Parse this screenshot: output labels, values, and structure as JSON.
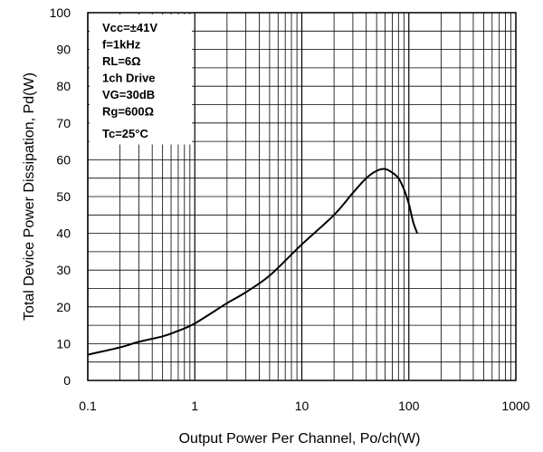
{
  "chart_data": {
    "type": "line",
    "xscale": "log",
    "xlim": [
      0.1,
      1000
    ],
    "ylim": [
      0,
      100
    ],
    "xlabel": "Output Power Per Channel, Po/ch(W)",
    "ylabel": "Total Device Power Dissipation, Pd(W)",
    "grid": true,
    "x_tick_labels": [
      "0.1",
      "1",
      "10",
      "100",
      "1000"
    ],
    "y_tick_labels": [
      "0",
      "10",
      "20",
      "30",
      "40",
      "50",
      "60",
      "70",
      "80",
      "90",
      "100"
    ],
    "conditions": [
      "Vcc=±41V",
      "f=1kHz",
      "RL=6Ω",
      "1ch Drive",
      "VG=30dB",
      "Rg=600Ω",
      "Tc=25°C"
    ],
    "series": [
      {
        "x": [
          0.1,
          0.2,
          0.3,
          0.5,
          0.7,
          1,
          2,
          3,
          5,
          10,
          20,
          30,
          40,
          50,
          60,
          70,
          80,
          90,
          100,
          110,
          120
        ],
        "y": [
          7,
          9,
          10.5,
          12,
          13.5,
          15.5,
          21,
          24,
          28.5,
          37,
          45,
          51,
          55,
          57,
          57.5,
          56.5,
          55,
          52,
          48,
          43,
          40
        ]
      }
    ]
  }
}
